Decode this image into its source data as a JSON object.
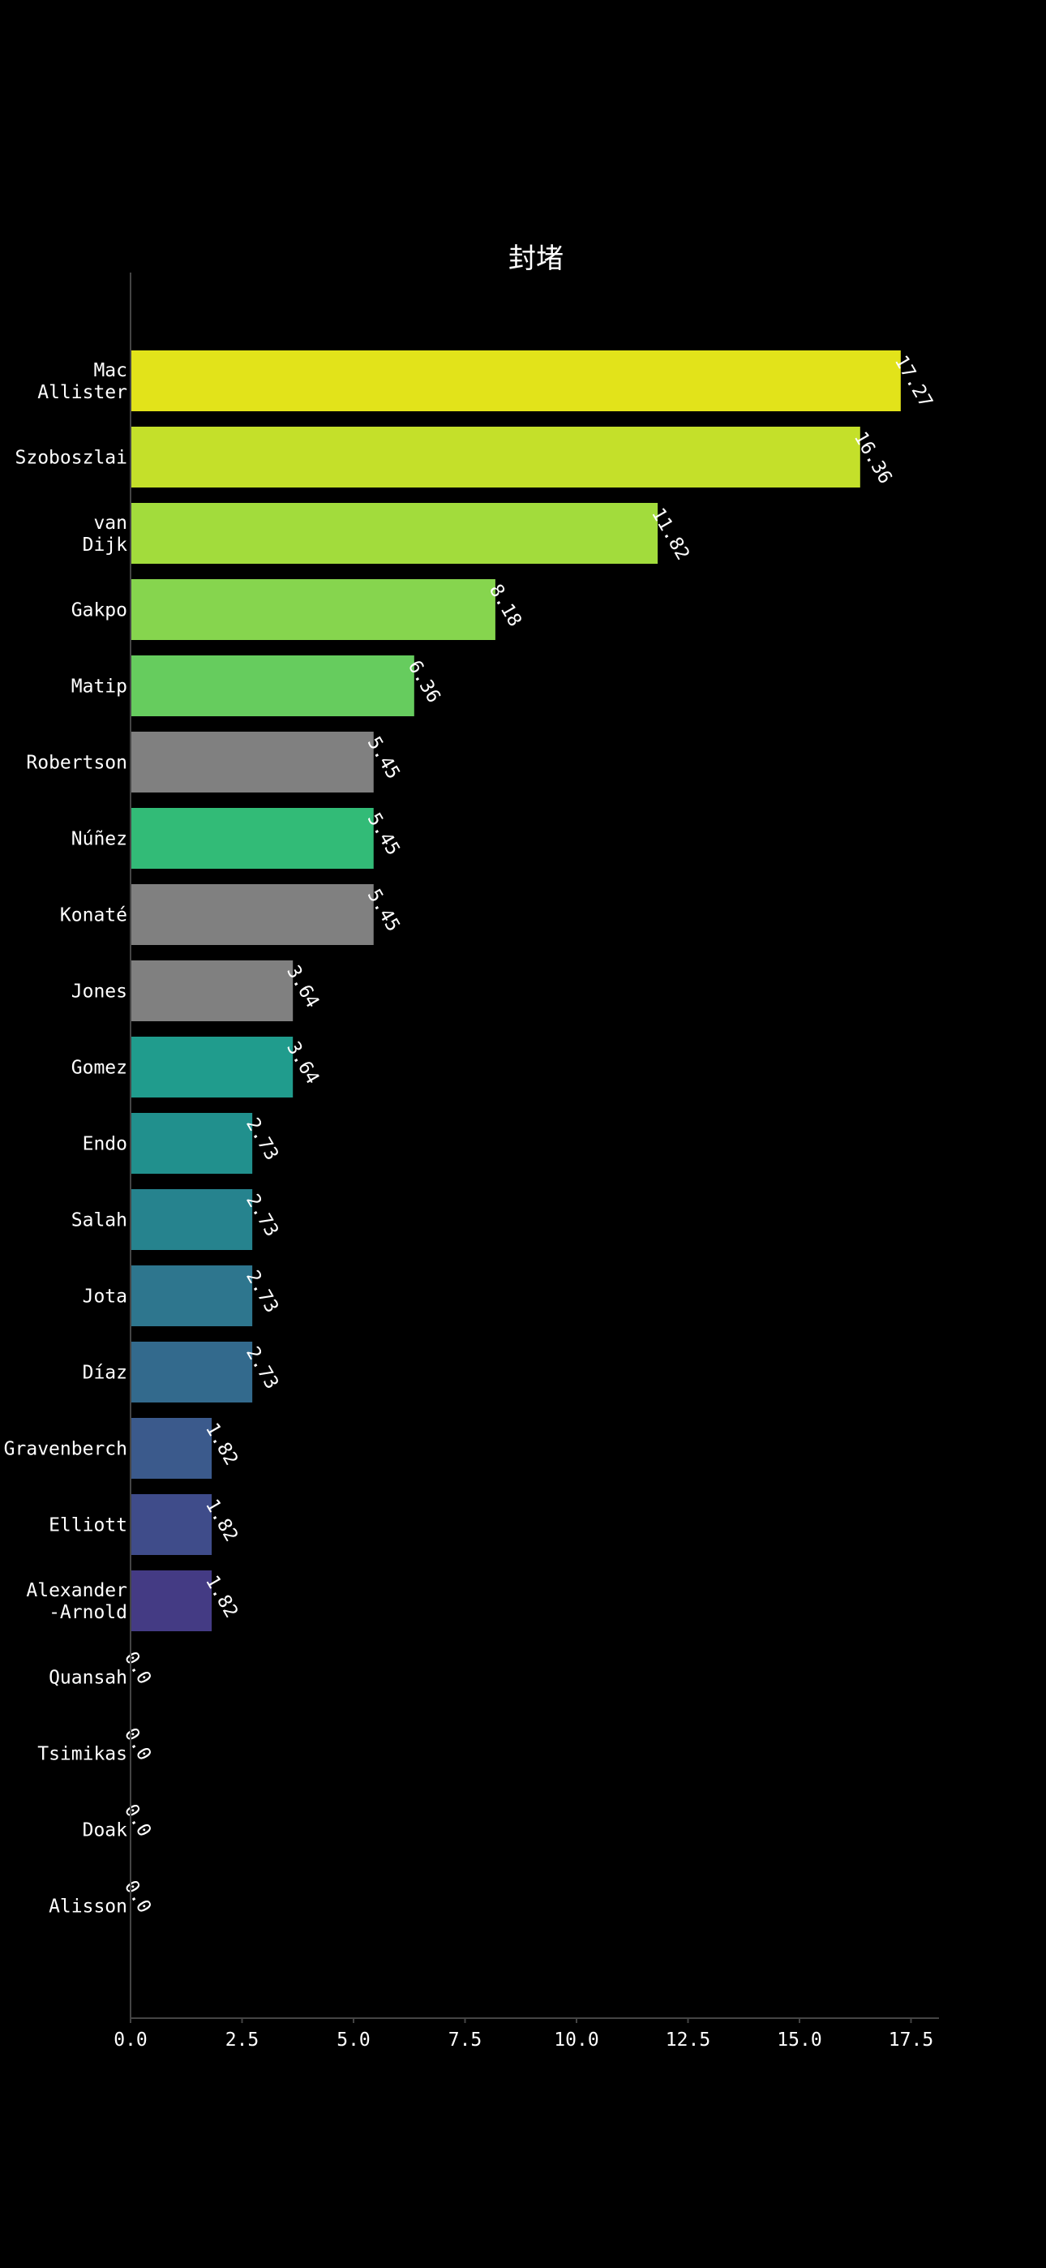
{
  "chart_data": {
    "type": "bar",
    "orientation": "horizontal",
    "title": "封堵",
    "xlabel": "",
    "ylabel": "",
    "xlim": [
      0,
      18
    ],
    "xticks": [
      0.0,
      2.5,
      5.0,
      7.5,
      10.0,
      12.5,
      15.0,
      17.5
    ],
    "xtick_labels": [
      "0.0",
      "2.5",
      "5.0",
      "7.5",
      "10.0",
      "12.5",
      "15.0",
      "17.5"
    ],
    "grid": false,
    "legend": "none",
    "background": "#000000",
    "categories": [
      [
        "Mac",
        "Allister"
      ],
      [
        "Szoboszlai"
      ],
      [
        "van",
        "Dijk"
      ],
      [
        "Gakpo"
      ],
      [
        "Matip"
      ],
      [
        "Robertson"
      ],
      [
        "Núñez"
      ],
      [
        "Konaté"
      ],
      [
        "Jones"
      ],
      [
        "Gomez"
      ],
      [
        "Endo"
      ],
      [
        "Salah"
      ],
      [
        "Jota"
      ],
      [
        "Díaz"
      ],
      [
        "Gravenberch"
      ],
      [
        "Elliott"
      ],
      [
        "Alexander",
        "-Arnold"
      ],
      [
        "Quansah"
      ],
      [
        "Tsimikas"
      ],
      [
        "Doak"
      ],
      [
        "Alisson"
      ]
    ],
    "values": [
      17.27,
      16.36,
      11.82,
      8.18,
      6.36,
      5.45,
      5.45,
      5.45,
      3.64,
      3.64,
      2.73,
      2.73,
      2.73,
      2.73,
      1.82,
      1.82,
      1.82,
      0.0,
      0.0,
      0.0,
      0.0
    ],
    "value_labels": [
      "17.27",
      "16.36",
      "11.82",
      "8.18",
      "6.36",
      "5.45",
      "5.45",
      "5.45",
      "3.64",
      "3.64",
      "2.73",
      "2.73",
      "2.73",
      "2.73",
      "1.82",
      "1.82",
      "1.82",
      "0.0",
      "0.0",
      "0.0",
      "0.0"
    ],
    "colors": [
      "#e2e31a",
      "#c4e02a",
      "#a2dc3c",
      "#86d54e",
      "#66cc5e",
      "#808080",
      "#32bb77",
      "#808080",
      "#808080",
      "#209c8d",
      "#21908d",
      "#26838e",
      "#2e768e",
      "#336a8d",
      "#3b5a8c",
      "#3f4c8a",
      "#443b84",
      "#3a1f6d",
      "#3a1f6d",
      "#3a1f6d",
      "#3a1f6d"
    ]
  }
}
